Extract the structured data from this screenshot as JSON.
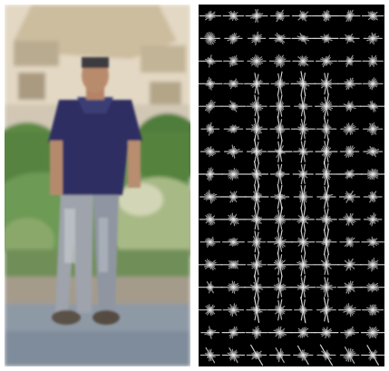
{
  "figure": {
    "panels": [
      {
        "id": "photo",
        "content": "pedestrian-photo"
      },
      {
        "id": "hog",
        "content": "hog-descriptor-visualization"
      }
    ],
    "colors": {
      "background": "#ffffff",
      "hog_background": "#000000",
      "hog_strokes": "#e8e8e8",
      "sky": "#e9e2d6",
      "house": "#d8c9b0",
      "foliage": "#4e7a3a",
      "shirt": "#2e2f63",
      "jeans": "#9da3ad",
      "pavement": "#8e99a6"
    }
  }
}
